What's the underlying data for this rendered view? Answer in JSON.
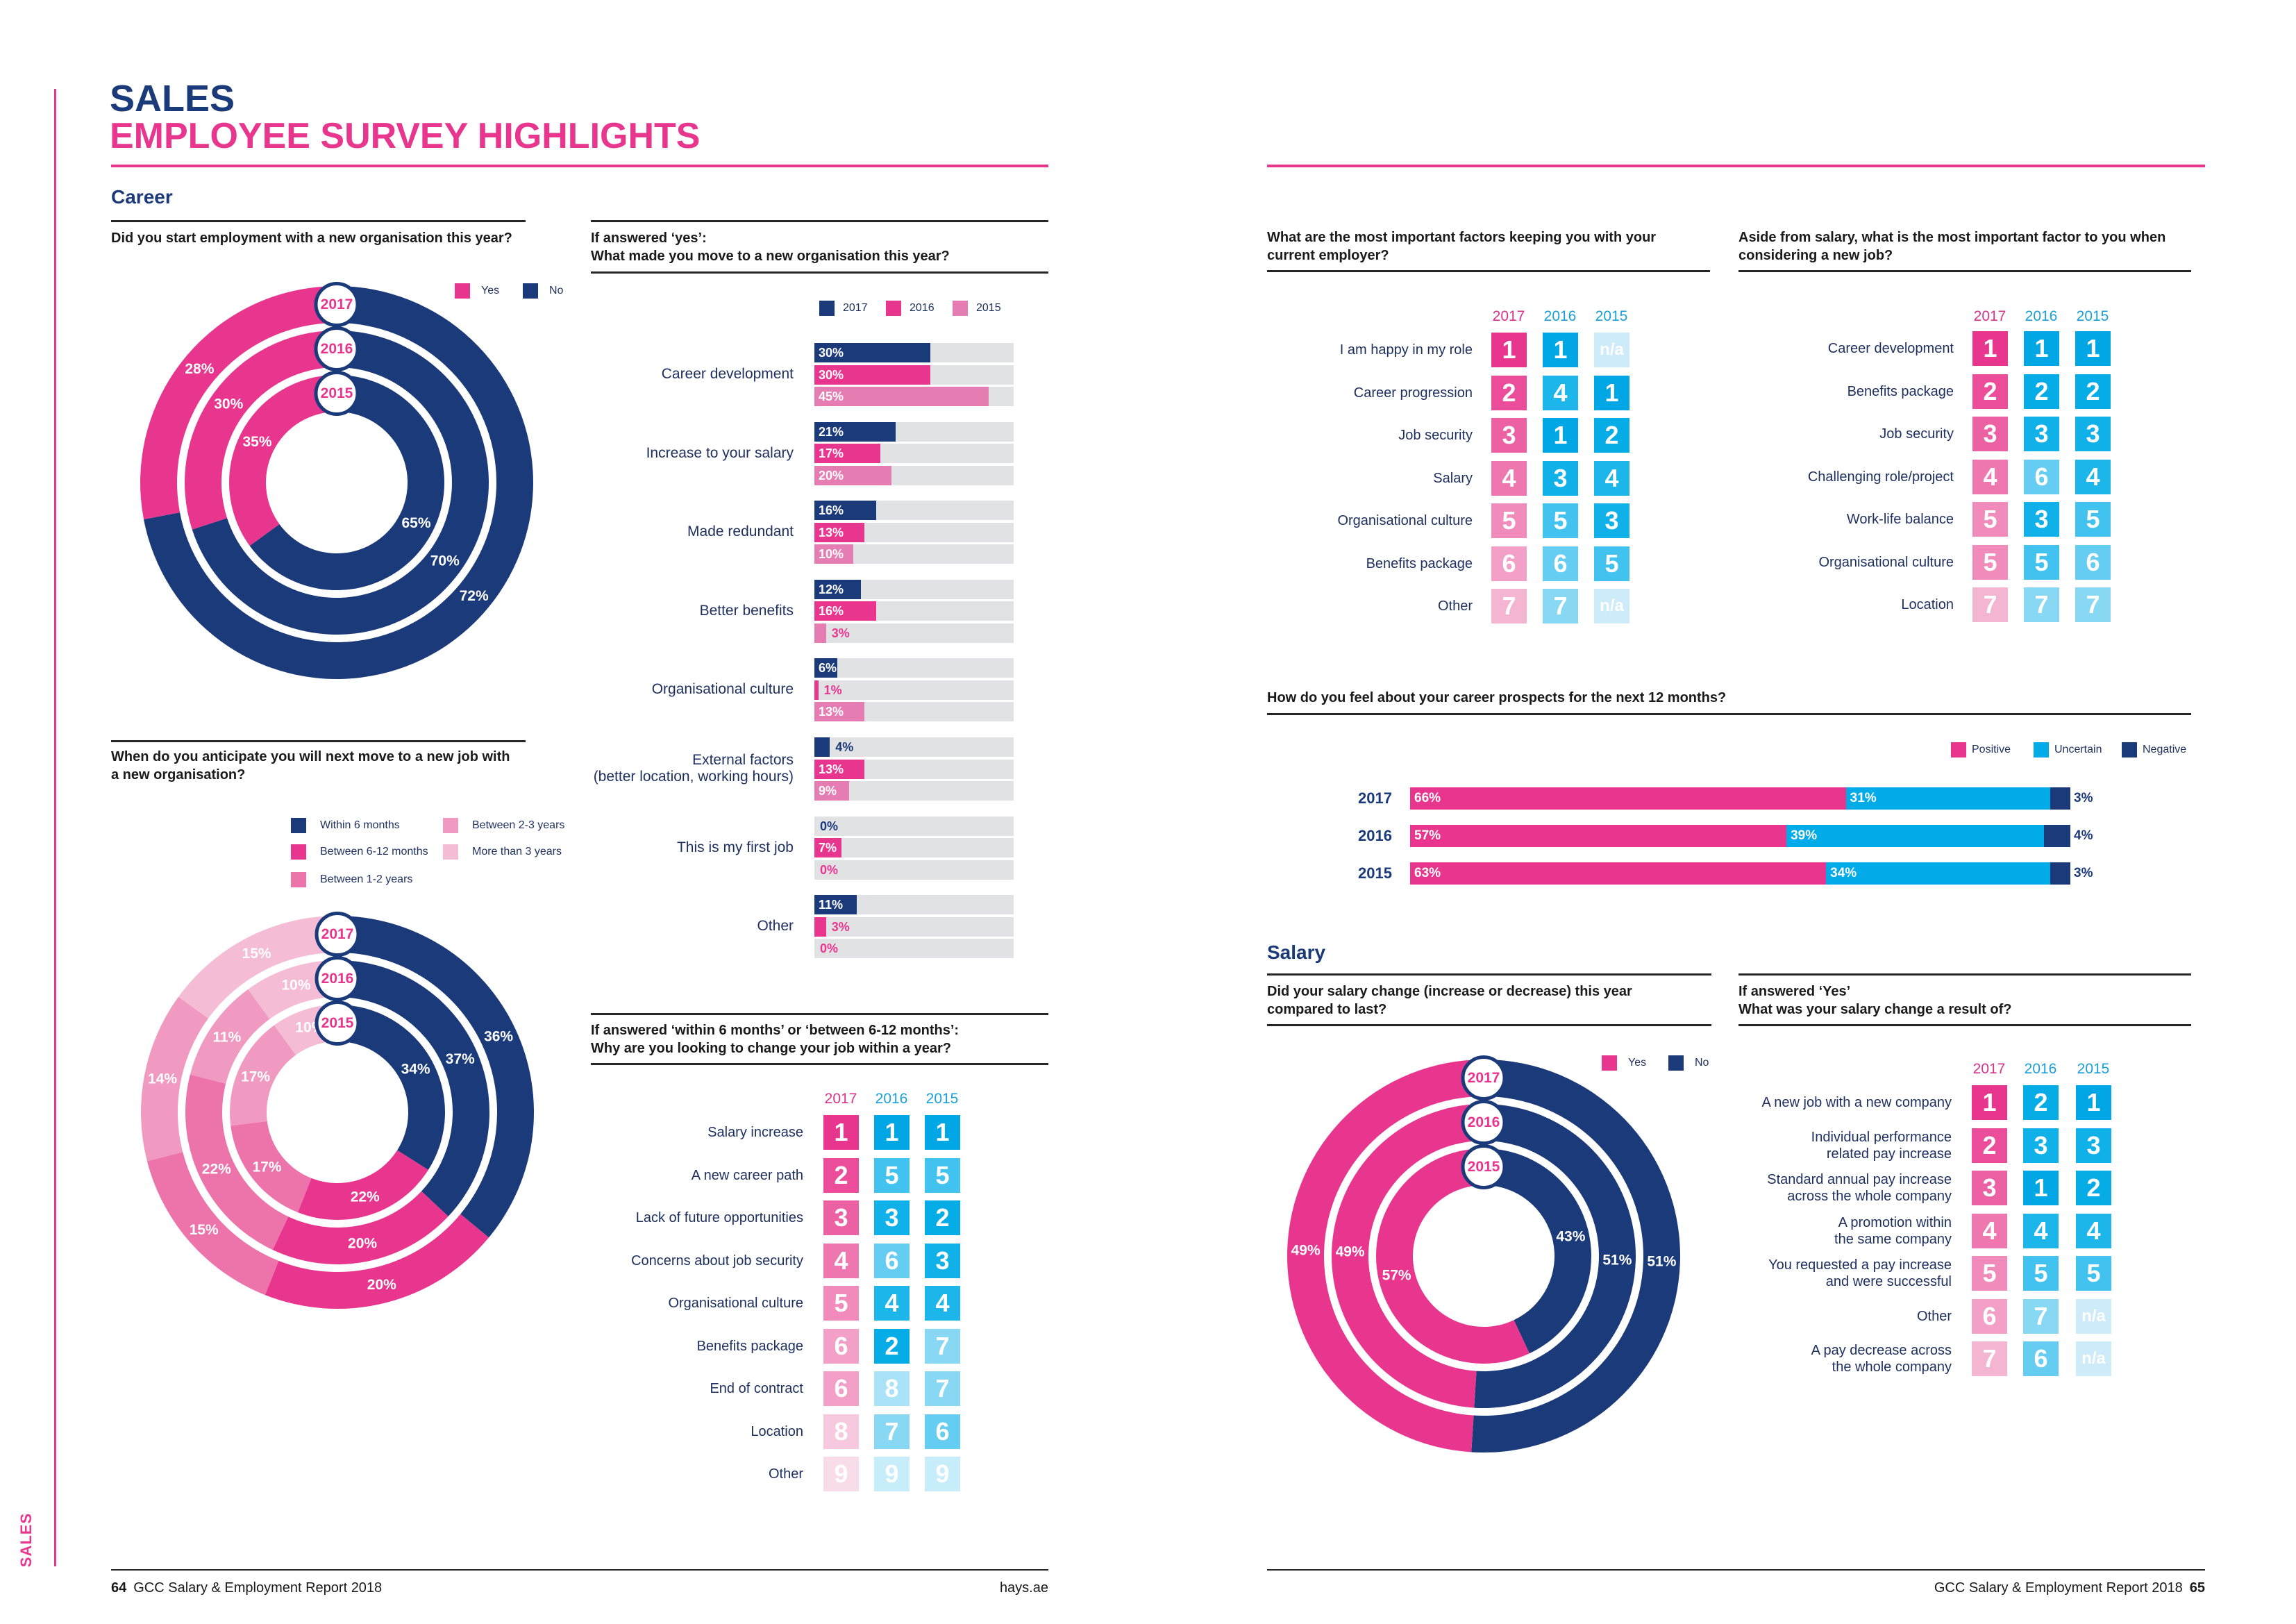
{
  "page": {
    "side_tab": "SALES",
    "title_line1": "SALES",
    "title_line2": "EMPLOYEE SURVEY HIGHLIGHTS",
    "career_heading": "Career",
    "salary_heading": "Salary"
  },
  "colors": {
    "navy": "#1b3a7a",
    "pink": "#e8368f",
    "pink_light": "#e57db3",
    "track": "#e1e2e4",
    "blue": "#00abe7",
    "year_pink": "#d6338a",
    "year_blue": "#1aa0d8",
    "rank_pink": [
      "#e8368f",
      "#eb4d9a",
      "#ec61a4",
      "#ee77b0",
      "#f08bbb",
      "#f2a0c7",
      "#f4b5d3",
      "#f7c9de",
      "#f9dcea"
    ],
    "rank_blue": [
      "#00a7e4",
      "#05ace6",
      "#10b1e8",
      "#1cb6ea",
      "#42c2ee",
      "#64cdf1",
      "#88d8f4",
      "#aae3f7",
      "#c8edfa"
    ],
    "rank_na": "#cdebf8"
  },
  "footer": {
    "left_page_number": "64",
    "left_text": "GCC Salary & Employment Report 2018",
    "left_url": "hays.ae",
    "right_text": "GCC Salary & Employment Report 2018",
    "right_page_number": "65"
  },
  "chart_data": [
    {
      "type": "donut",
      "title": "Did you start employment with a new organisation this year?",
      "legend": [
        {
          "name": "Yes",
          "color": "#e8368f"
        },
        {
          "name": "No",
          "color": "#1b3a7a"
        }
      ],
      "rings": [
        {
          "year": "2017",
          "values": {
            "Yes": 28,
            "No": 72
          },
          "labels": {
            "Yes": "28%",
            "No": "72%"
          }
        },
        {
          "year": "2016",
          "values": {
            "Yes": 30,
            "No": 70
          },
          "labels": {
            "Yes": "30%",
            "No": "70%"
          }
        },
        {
          "year": "2015",
          "values": {
            "Yes": 35,
            "No": 65
          },
          "labels": {
            "Yes": "35%",
            "No": "65%"
          }
        }
      ]
    },
    {
      "type": "bar",
      "title": "If answered ‘yes’:\nWhat made you move to a new organisation this year?",
      "categories": [
        "Career development",
        "Increase to your salary",
        "Made redundant",
        "Better benefits",
        "Organisational culture",
        "External factors\n(better location, working hours)",
        "This is my first job",
        "Other"
      ],
      "series": [
        {
          "name": "2017",
          "color": "#1b3a7a",
          "values": [
            30,
            21,
            16,
            12,
            6,
            4,
            0,
            11
          ],
          "labels": [
            "30%",
            "21%",
            "16%",
            "12%",
            "6%",
            "4%",
            "0%",
            "11%"
          ]
        },
        {
          "name": "2016",
          "color": "#e8368f",
          "values": [
            30,
            17,
            13,
            16,
            1,
            13,
            7,
            3
          ],
          "labels": [
            "30%",
            "17%",
            "13%",
            "16%",
            "1%",
            "13%",
            "7%",
            "3%"
          ]
        },
        {
          "name": "2015",
          "color": "#e57db3",
          "values": [
            45,
            20,
            10,
            3,
            13,
            9,
            0,
            0
          ],
          "labels": [
            "45%",
            "20%",
            "10%",
            "3%",
            "13%",
            "9%",
            "0%",
            "0%"
          ]
        }
      ],
      "unit": "%"
    },
    {
      "type": "donut",
      "title": "When do you anticipate you will next move to a new job with\na new organisation?",
      "legend": [
        {
          "name": "Within 6 months",
          "color": "#1b3a7a"
        },
        {
          "name": "Between 6-12 months",
          "color": "#e8368f"
        },
        {
          "name": "Between 1-2 years",
          "color": "#ec74aa"
        },
        {
          "name": "Between 2-3 years",
          "color": "#f09ac2"
        },
        {
          "name": "More than 3 years",
          "color": "#f5bcd5"
        }
      ],
      "rings": [
        {
          "year": "2017",
          "values": [
            36,
            20,
            15,
            14,
            15
          ],
          "labels": [
            "36%",
            "20%",
            "15%",
            "14%",
            "15%"
          ]
        },
        {
          "year": "2016",
          "values": [
            37,
            20,
            22,
            11,
            10
          ],
          "labels": [
            "37%",
            "20%",
            "22%",
            "11%",
            "10%"
          ]
        },
        {
          "year": "2015",
          "values": [
            34,
            22,
            17,
            17,
            10
          ],
          "labels": [
            "34%",
            "22%",
            "17%",
            "17%",
            "10%"
          ]
        }
      ]
    },
    {
      "type": "table",
      "title": "If answered ‘within 6 months’ or ‘between 6-12 months’:\nWhy are you looking to change your job within a year?",
      "columns": [
        "2017",
        "2016",
        "2015"
      ],
      "rows": [
        {
          "label": "Salary increase",
          "ranks": [
            "1",
            "1",
            "1"
          ]
        },
        {
          "label": "A new career path",
          "ranks": [
            "2",
            "5",
            "5"
          ]
        },
        {
          "label": "Lack of future opportunities",
          "ranks": [
            "3",
            "3",
            "2"
          ]
        },
        {
          "label": "Concerns about job security",
          "ranks": [
            "4",
            "6",
            "3"
          ]
        },
        {
          "label": "Organisational culture",
          "ranks": [
            "5",
            "4",
            "4"
          ]
        },
        {
          "label": "Benefits package",
          "ranks": [
            "6",
            "2",
            "7"
          ]
        },
        {
          "label": "End of contract",
          "ranks": [
            "6",
            "8",
            "7"
          ]
        },
        {
          "label": "Location",
          "ranks": [
            "8",
            "7",
            "6"
          ]
        },
        {
          "label": "Other",
          "ranks": [
            "9",
            "9",
            "9"
          ]
        }
      ]
    },
    {
      "type": "table",
      "title": "What are the most important factors keeping you with your\ncurrent employer?",
      "columns": [
        "2017",
        "2016",
        "2015"
      ],
      "rows": [
        {
          "label": "I am happy in my role",
          "ranks": [
            "1",
            "1",
            "n/a"
          ]
        },
        {
          "label": "Career progression",
          "ranks": [
            "2",
            "4",
            "1"
          ]
        },
        {
          "label": "Job security",
          "ranks": [
            "3",
            "1",
            "2"
          ]
        },
        {
          "label": "Salary",
          "ranks": [
            "4",
            "3",
            "4"
          ]
        },
        {
          "label": "Organisational culture",
          "ranks": [
            "5",
            "5",
            "3"
          ]
        },
        {
          "label": "Benefits package",
          "ranks": [
            "6",
            "6",
            "5"
          ]
        },
        {
          "label": "Other",
          "ranks": [
            "7",
            "7",
            "n/a"
          ]
        }
      ]
    },
    {
      "type": "table",
      "title": "Aside from salary, what is the most important factor to you when\nconsidering a new job?",
      "columns": [
        "2017",
        "2016",
        "2015"
      ],
      "rows": [
        {
          "label": "Career development",
          "ranks": [
            "1",
            "1",
            "1"
          ]
        },
        {
          "label": "Benefits package",
          "ranks": [
            "2",
            "2",
            "2"
          ]
        },
        {
          "label": "Job security",
          "ranks": [
            "3",
            "3",
            "3"
          ]
        },
        {
          "label": "Challenging role/project",
          "ranks": [
            "4",
            "6",
            "4"
          ]
        },
        {
          "label": "Work-life balance",
          "ranks": [
            "5",
            "3",
            "5"
          ]
        },
        {
          "label": "Organisational culture",
          "ranks": [
            "5",
            "5",
            "6"
          ]
        },
        {
          "label": "Location",
          "ranks": [
            "7",
            "7",
            "7"
          ]
        }
      ]
    },
    {
      "type": "bar",
      "stacked": true,
      "title": "How do you feel about your career prospects for the next 12 months?",
      "categories": [
        "2017",
        "2016",
        "2015"
      ],
      "series": [
        {
          "name": "Positive",
          "color": "#e8368f",
          "values": [
            66,
            57,
            63
          ],
          "labels": [
            "66%",
            "57%",
            "63%"
          ]
        },
        {
          "name": "Uncertain",
          "color": "#00abe7",
          "values": [
            31,
            39,
            34
          ],
          "labels": [
            "31%",
            "39%",
            "34%"
          ]
        },
        {
          "name": "Negative",
          "color": "#1b3a7a",
          "values": [
            3,
            4,
            3
          ],
          "labels": [
            "3%",
            "4%",
            "3%"
          ]
        }
      ],
      "xlim": [
        0,
        100
      ],
      "unit": "%"
    },
    {
      "type": "donut",
      "title": "Did your salary change (increase or decrease) this year\ncompared to last?",
      "legend": [
        {
          "name": "Yes",
          "color": "#e8368f"
        },
        {
          "name": "No",
          "color": "#1b3a7a"
        }
      ],
      "rings": [
        {
          "year": "2017",
          "values": {
            "Yes": 49,
            "No": 51
          },
          "labels": {
            "Yes": "49%",
            "No": "51%"
          }
        },
        {
          "year": "2016",
          "values": {
            "Yes": 49,
            "No": 51
          },
          "labels": {
            "Yes": "49%",
            "No": "51%"
          }
        },
        {
          "year": "2015",
          "values": {
            "Yes": 57,
            "No": 43
          },
          "labels": {
            "Yes": "57%",
            "No": "43%"
          }
        }
      ]
    },
    {
      "type": "table",
      "title": "If answered ‘Yes’\nWhat was your salary change a result of?",
      "columns": [
        "2017",
        "2016",
        "2015"
      ],
      "rows": [
        {
          "label": "A new job with a new company",
          "ranks": [
            "1",
            "2",
            "1"
          ]
        },
        {
          "label": "Individual performance\nrelated pay increase",
          "ranks": [
            "2",
            "3",
            "3"
          ]
        },
        {
          "label": "Standard annual pay increase\nacross the whole company",
          "ranks": [
            "3",
            "1",
            "2"
          ]
        },
        {
          "label": "A promotion within\nthe same company",
          "ranks": [
            "4",
            "4",
            "4"
          ]
        },
        {
          "label": "You requested a pay increase\nand were successful",
          "ranks": [
            "5",
            "5",
            "5"
          ]
        },
        {
          "label": "Other",
          "ranks": [
            "6",
            "7",
            "n/a"
          ]
        },
        {
          "label": "A pay decrease across\nthe whole company",
          "ranks": [
            "7",
            "6",
            "n/a"
          ]
        }
      ]
    }
  ]
}
